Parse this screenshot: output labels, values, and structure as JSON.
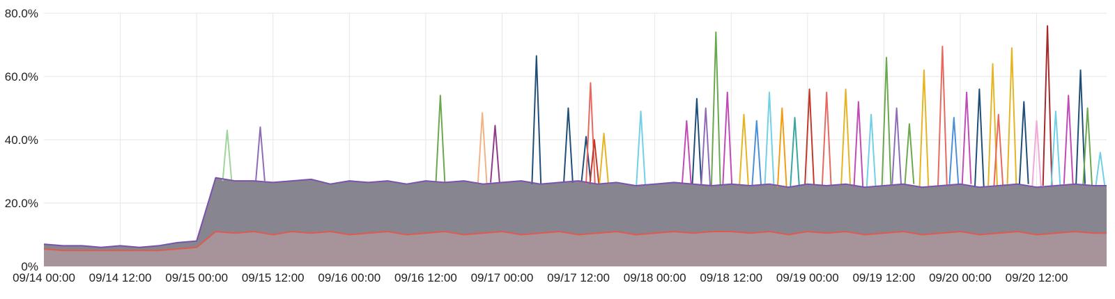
{
  "chart_data": {
    "type": "area",
    "title": "",
    "xlabel": "",
    "ylabel": "",
    "ylim": [
      0,
      80
    ],
    "grid": true,
    "legend": "none",
    "y_ticks": [
      {
        "value": 0,
        "label": "0%"
      },
      {
        "value": 20,
        "label": "20.0%"
      },
      {
        "value": 40,
        "label": "40.0%"
      },
      {
        "value": 60,
        "label": "60.0%"
      },
      {
        "value": 80,
        "label": "80.0%"
      }
    ],
    "x_unit": "hours since 09/14 00:00",
    "x_range": [
      0,
      167
    ],
    "x_ticks": [
      {
        "value": 0,
        "label": "09/14 00:00"
      },
      {
        "value": 12,
        "label": "09/14 12:00"
      },
      {
        "value": 24,
        "label": "09/15 00:00"
      },
      {
        "value": 36,
        "label": "09/15 12:00"
      },
      {
        "value": 48,
        "label": "09/16 00:00"
      },
      {
        "value": 60,
        "label": "09/16 12:00"
      },
      {
        "value": 72,
        "label": "09/17 00:00"
      },
      {
        "value": 84,
        "label": "09/17 12:00"
      },
      {
        "value": 96,
        "label": "09/18 00:00"
      },
      {
        "value": 108,
        "label": "09/18 12:00"
      },
      {
        "value": 120,
        "label": "09/19 00:00"
      },
      {
        "value": 132,
        "label": "09/19 12:00"
      },
      {
        "value": 144,
        "label": "09/20 00:00"
      },
      {
        "value": 156,
        "label": "09/20 12:00"
      }
    ],
    "x_step": 3,
    "series": [
      {
        "color": "#87858f",
        "line_color": "#7b52ab",
        "values": [
          7,
          6.5,
          6.5,
          6,
          6.5,
          6,
          6.5,
          7.5,
          8,
          28,
          27,
          27,
          26.5,
          27,
          27.5,
          26,
          27,
          26.5,
          27,
          26,
          27,
          26.5,
          27,
          26,
          26.5,
          27,
          26,
          26.5,
          27,
          26,
          26.5,
          25.5,
          26,
          26.5,
          26,
          25.5,
          26,
          25.5,
          26,
          25,
          26,
          25.5,
          26,
          25,
          25.5,
          26,
          25,
          25.5,
          26,
          25,
          25.5,
          26,
          25,
          25.5,
          26,
          25.5
        ]
      },
      {
        "color": "#a7939a",
        "line_color": "#e0594e",
        "values": [
          5.5,
          5,
          5,
          5,
          5,
          5,
          5,
          5.5,
          6,
          11,
          10.5,
          11,
          10,
          11,
          10.5,
          11,
          10,
          10.5,
          11,
          10,
          10.5,
          11,
          10,
          10.5,
          11,
          10,
          10.5,
          11,
          10,
          10.5,
          11,
          10,
          10.5,
          11,
          10.5,
          11,
          11,
          10.5,
          11,
          10,
          11,
          10.5,
          11,
          10,
          10.5,
          11,
          10,
          10.5,
          11,
          10,
          10.5,
          11,
          10,
          10.5,
          11,
          10.5
        ]
      }
    ],
    "spikes": [
      {
        "x": 28.8,
        "y": 43,
        "color": "#9fd49a"
      },
      {
        "x": 34,
        "y": 44,
        "color": "#8e6bb8"
      },
      {
        "x": 62.3,
        "y": 54,
        "color": "#6aa84f"
      },
      {
        "x": 68.9,
        "y": 48.5,
        "color": "#f4b183"
      },
      {
        "x": 70.9,
        "y": 44.5,
        "color": "#8e3a8e"
      },
      {
        "x": 77.4,
        "y": 66.5,
        "color": "#1f4e79"
      },
      {
        "x": 82.4,
        "y": 50,
        "color": "#1f4e79"
      },
      {
        "x": 85.2,
        "y": 41,
        "color": "#1f4e79"
      },
      {
        "x": 85.9,
        "y": 58,
        "color": "#e8685f"
      },
      {
        "x": 86.5,
        "y": 40,
        "color": "#c0392b"
      },
      {
        "x": 88,
        "y": 42,
        "color": "#e6b422"
      },
      {
        "x": 93.8,
        "y": 49,
        "color": "#6fd0e8"
      },
      {
        "x": 101,
        "y": 46,
        "color": "#c04bb6"
      },
      {
        "x": 102.6,
        "y": 53,
        "color": "#1f4e79"
      },
      {
        "x": 104,
        "y": 50,
        "color": "#8e6bb8"
      },
      {
        "x": 105.6,
        "y": 74,
        "color": "#6aa84f"
      },
      {
        "x": 107.4,
        "y": 55,
        "color": "#c04bb6"
      },
      {
        "x": 110,
        "y": 48,
        "color": "#e6b422"
      },
      {
        "x": 112,
        "y": 46,
        "color": "#4a90d9"
      },
      {
        "x": 114,
        "y": 55,
        "color": "#6fd0e8"
      },
      {
        "x": 116,
        "y": 50,
        "color": "#f39c12"
      },
      {
        "x": 118,
        "y": 47,
        "color": "#3aa6a0"
      },
      {
        "x": 120.3,
        "y": 56,
        "color": "#c0392b"
      },
      {
        "x": 123,
        "y": 55,
        "color": "#e8685f"
      },
      {
        "x": 126,
        "y": 56,
        "color": "#e6b422"
      },
      {
        "x": 128,
        "y": 52,
        "color": "#c04bb6"
      },
      {
        "x": 130,
        "y": 48,
        "color": "#6fd0e8"
      },
      {
        "x": 132.4,
        "y": 66,
        "color": "#6aa84f"
      },
      {
        "x": 134,
        "y": 50,
        "color": "#8e6bb8"
      },
      {
        "x": 136,
        "y": 45,
        "color": "#6aa84f"
      },
      {
        "x": 138.3,
        "y": 62,
        "color": "#e6b422"
      },
      {
        "x": 141.2,
        "y": 69.5,
        "color": "#e8685f"
      },
      {
        "x": 143,
        "y": 47,
        "color": "#4a90d9"
      },
      {
        "x": 145,
        "y": 55,
        "color": "#c04bb6"
      },
      {
        "x": 147,
        "y": 56,
        "color": "#1f4e79"
      },
      {
        "x": 149.1,
        "y": 64,
        "color": "#e6b422"
      },
      {
        "x": 150,
        "y": 48,
        "color": "#e8685f"
      },
      {
        "x": 152.1,
        "y": 69,
        "color": "#e6b422"
      },
      {
        "x": 154,
        "y": 52,
        "color": "#1f4e79"
      },
      {
        "x": 156,
        "y": 46,
        "color": "#f4a6d7"
      },
      {
        "x": 157.7,
        "y": 76,
        "color": "#a52a2a"
      },
      {
        "x": 159,
        "y": 49,
        "color": "#6fd0e8"
      },
      {
        "x": 161,
        "y": 54,
        "color": "#c04bb6"
      },
      {
        "x": 162.9,
        "y": 62,
        "color": "#1f4e79"
      },
      {
        "x": 164,
        "y": 50,
        "color": "#6aa84f"
      },
      {
        "x": 166,
        "y": 36,
        "color": "#6fd0e8"
      }
    ]
  }
}
